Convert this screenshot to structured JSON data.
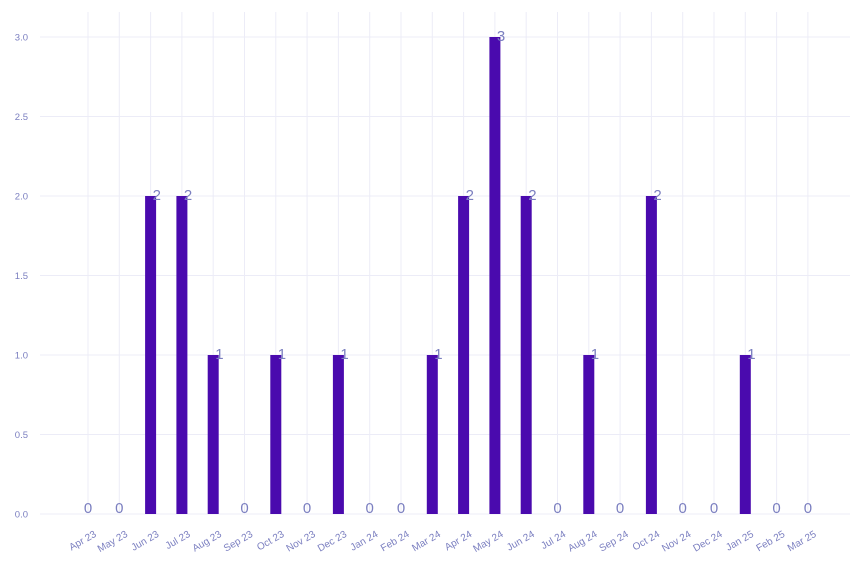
{
  "chart_data": {
    "type": "bar",
    "title": "",
    "xlabel": "",
    "ylabel": "",
    "categories": [
      "Apr 23",
      "May 23",
      "Jun 23",
      "Jul 23",
      "Aug 23",
      "Sep 23",
      "Oct 23",
      "Nov 23",
      "Dec 23",
      "Jan 24",
      "Feb 24",
      "Mar 24",
      "Apr 24",
      "May 24",
      "Jun 24",
      "Jul 24",
      "Aug 24",
      "Sep 24",
      "Oct 24",
      "Nov 24",
      "Dec 24",
      "Jan 25",
      "Feb 25",
      "Mar 25"
    ],
    "values": [
      0,
      0,
      2,
      2,
      1,
      0,
      1,
      0,
      1,
      0,
      0,
      1,
      2,
      3,
      2,
      0,
      1,
      0,
      2,
      0,
      0,
      1,
      0,
      0
    ],
    "data_labels": [
      "0",
      "0",
      "2",
      "2",
      "1",
      "0",
      "1",
      "0",
      "1",
      "0",
      "0",
      "1",
      "2",
      "3",
      "2",
      "0",
      "1",
      "0",
      "2",
      "0",
      "0",
      "1",
      "0",
      "0"
    ],
    "ylim": [
      0,
      3
    ],
    "yticks": [
      "0.0",
      "0.5",
      "1.0",
      "1.5",
      "2.0",
      "2.5",
      "3.0"
    ],
    "grid": true,
    "legend": "none",
    "colors": {
      "bar": "#4a0aae",
      "text": "#7b7fc0",
      "grid": "#ececf7"
    }
  }
}
